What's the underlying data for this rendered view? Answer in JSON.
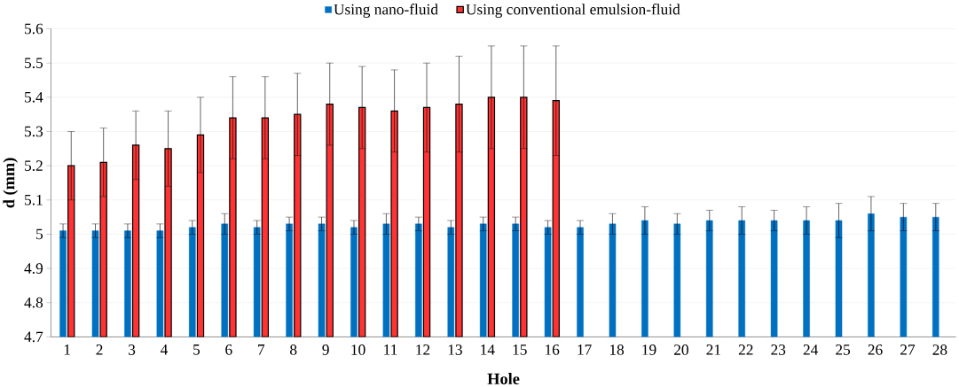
{
  "chart_data": {
    "type": "bar",
    "xlabel": "Hole",
    "ylabel": "d (mm)",
    "categories": [
      "1",
      "2",
      "3",
      "4",
      "5",
      "6",
      "7",
      "8",
      "9",
      "10",
      "11",
      "12",
      "13",
      "14",
      "15",
      "16",
      "17",
      "18",
      "19",
      "20",
      "21",
      "22",
      "23",
      "24",
      "25",
      "26",
      "27",
      "28"
    ],
    "series": [
      {
        "name": "Using nano-fluid",
        "color": "#0070c0",
        "values": [
          5.01,
          5.01,
          5.01,
          5.01,
          5.02,
          5.03,
          5.02,
          5.03,
          5.03,
          5.02,
          5.03,
          5.03,
          5.02,
          5.03,
          5.03,
          5.02,
          5.02,
          5.03,
          5.04,
          5.03,
          5.04,
          5.04,
          5.04,
          5.04,
          5.04,
          5.06,
          5.05,
          5.05
        ],
        "errors": [
          0.02,
          0.02,
          0.02,
          0.02,
          0.02,
          0.03,
          0.02,
          0.02,
          0.02,
          0.02,
          0.03,
          0.02,
          0.02,
          0.02,
          0.02,
          0.02,
          0.02,
          0.03,
          0.04,
          0.03,
          0.03,
          0.04,
          0.03,
          0.04,
          0.05,
          0.05,
          0.04,
          0.04
        ]
      },
      {
        "name": "Using conventional emulsion-fluid",
        "color": "#ff3333",
        "values": [
          5.2,
          5.21,
          5.26,
          5.25,
          5.29,
          5.34,
          5.34,
          5.35,
          5.38,
          5.37,
          5.36,
          5.37,
          5.38,
          5.4,
          5.4,
          5.39,
          null,
          null,
          null,
          null,
          null,
          null,
          null,
          null,
          null,
          null,
          null,
          null
        ],
        "errors": [
          0.1,
          0.1,
          0.1,
          0.11,
          0.11,
          0.12,
          0.12,
          0.12,
          0.12,
          0.12,
          0.12,
          0.13,
          0.14,
          0.15,
          0.15,
          0.16,
          null,
          null,
          null,
          null,
          null,
          null,
          null,
          null,
          null,
          null,
          null,
          null
        ]
      }
    ],
    "ylim": [
      4.7,
      5.6
    ],
    "yticks": [
      4.7,
      4.8,
      4.9,
      5,
      5.1,
      5.2,
      5.3,
      5.4,
      5.5,
      5.6
    ],
    "grid": "y",
    "legend": "top"
  }
}
